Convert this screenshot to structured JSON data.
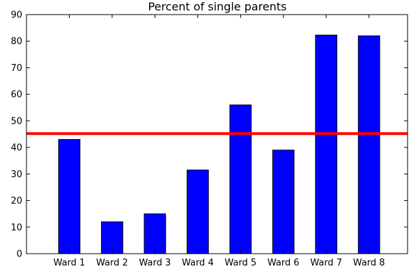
{
  "chart_data": {
    "type": "bar",
    "title": "Percent of single parents",
    "xlabel": "",
    "ylabel": "",
    "categories": [
      "Ward 1",
      "Ward 2",
      "Ward 3",
      "Ward 4",
      "Ward 5",
      "Ward 6",
      "Ward 7",
      "Ward 8"
    ],
    "values": [
      43,
      12,
      15,
      31.5,
      56,
      39,
      82.3,
      82
    ],
    "ylim": [
      0,
      90
    ],
    "yticks": [
      "0",
      "10",
      "20",
      "30",
      "40",
      "50",
      "60",
      "70",
      "80",
      "90"
    ],
    "reference_line": 45.2,
    "grid": false,
    "colors": {
      "bar": "#0000ff",
      "reference_line": "#ff0000"
    }
  }
}
